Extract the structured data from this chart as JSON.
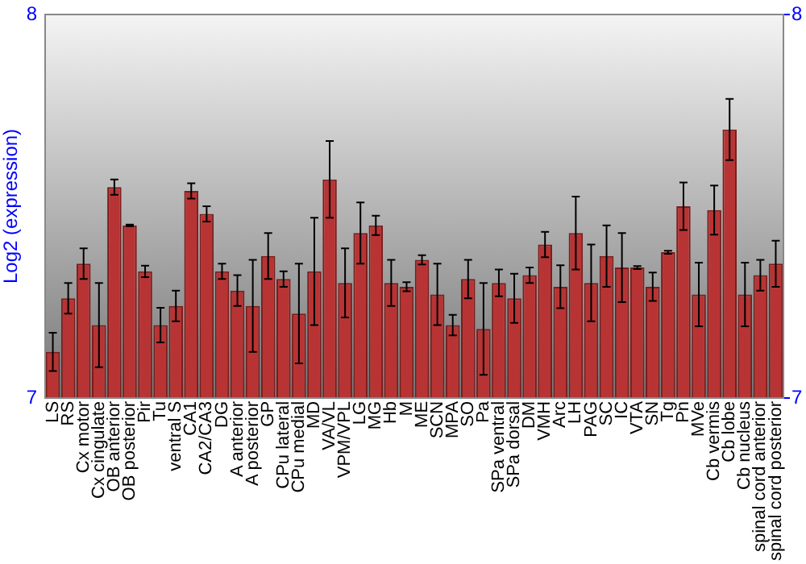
{
  "chart_data": {
    "type": "bar",
    "ylabel": "Log2 (expression)",
    "categories": [
      "LS",
      "RS",
      "Cx motor",
      "Cx cingulate",
      "OB anterior",
      "OB posterior",
      "Pir",
      "Tu",
      "ventral S",
      "CA1",
      "CA2/CA3",
      "DG",
      "A anterior",
      "A posterior",
      "GP",
      "CPu lateral",
      "CPu medial",
      "MD",
      "VA/VL",
      "VPM/VPL",
      "LG",
      "MG",
      "Hb",
      "M",
      "ME",
      "SCN",
      "MPA",
      "SO",
      "Pa",
      "SPa ventral",
      "SPa dorsal",
      "DM",
      "VMH",
      "Arc",
      "LH",
      "PAG",
      "SC",
      "IC",
      "VTA",
      "SN",
      "Tg",
      "Pn",
      "MVe",
      "Cb vermis",
      "Cb lobe",
      "Cb nucleus",
      "spinal cord anterior",
      "spinal cord posterior"
    ],
    "values": [
      7.12,
      7.26,
      7.35,
      7.19,
      7.55,
      7.45,
      7.33,
      7.19,
      7.24,
      7.54,
      7.48,
      7.33,
      7.28,
      7.24,
      7.37,
      7.31,
      7.22,
      7.33,
      7.57,
      7.3,
      7.43,
      7.45,
      7.3,
      7.29,
      7.36,
      7.27,
      7.19,
      7.31,
      7.18,
      7.3,
      7.26,
      7.32,
      7.4,
      7.29,
      7.43,
      7.3,
      7.37,
      7.34,
      7.34,
      7.29,
      7.38,
      7.5,
      7.27,
      7.49,
      7.7,
      7.27,
      7.32,
      7.35
    ],
    "errors": [
      0.05,
      0.04,
      0.04,
      0.11,
      0.02,
      0.002,
      0.015,
      0.045,
      0.04,
      0.02,
      0.02,
      0.02,
      0.04,
      0.12,
      0.06,
      0.02,
      0.13,
      0.14,
      0.1,
      0.09,
      0.08,
      0.025,
      0.06,
      0.012,
      0.012,
      0.08,
      0.027,
      0.05,
      0.12,
      0.035,
      0.064,
      0.02,
      0.033,
      0.056,
      0.095,
      0.1,
      0.08,
      0.09,
      0.004,
      0.037,
      0.004,
      0.062,
      0.083,
      0.064,
      0.08,
      0.083,
      0.04,
      0.06
    ],
    "color": "#b83434",
    "ylim": [
      7,
      8
    ],
    "yticks": [
      7,
      8
    ],
    "y2lim": [
      7,
      8
    ],
    "y2ticks": [
      7,
      8
    ],
    "grid": false,
    "legend": false
  }
}
